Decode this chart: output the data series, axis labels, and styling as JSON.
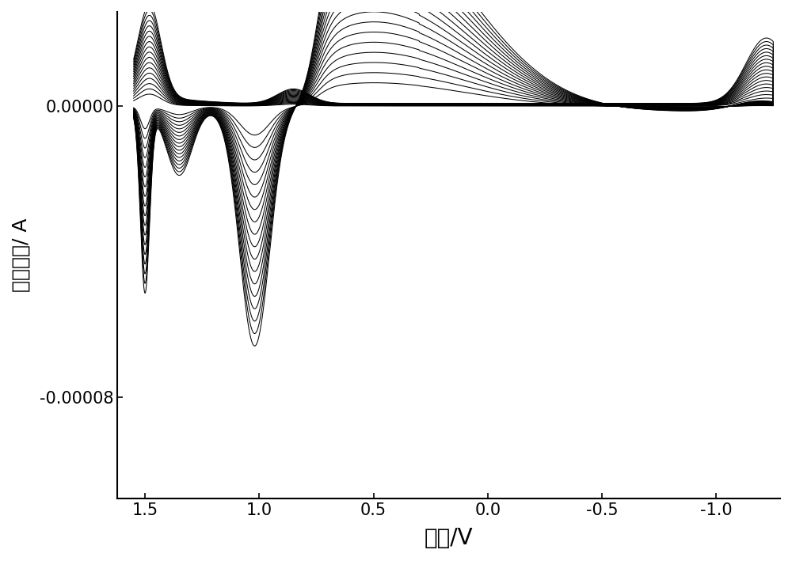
{
  "xlabel": "电位/V",
  "ylabel": "响应电流/ A",
  "xlim": [
    1.62,
    -1.28
  ],
  "ylim": [
    -0.000108,
    2.6e-05
  ],
  "yticks": [
    0.0,
    -8e-05
  ],
  "xticks": [
    1.5,
    1.0,
    0.5,
    0.0,
    -0.5,
    -1.0
  ],
  "background_color": "#ffffff",
  "n_cycles": 18,
  "xlabel_fontsize": 20,
  "ylabel_fontsize": 18,
  "tick_fontsize": 15
}
